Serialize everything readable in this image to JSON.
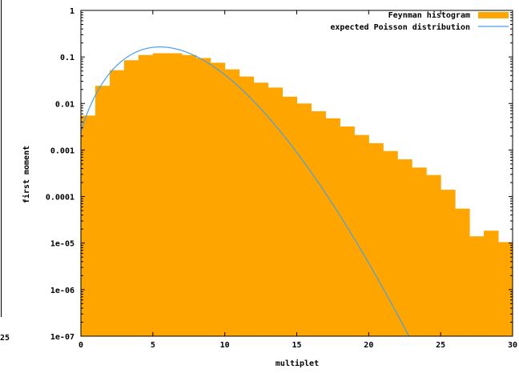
{
  "colors": {
    "histogram": "#ffa500",
    "poisson": "#4a9ee8",
    "axis": "#000000"
  },
  "chart_data": {
    "type": "bar",
    "xlabel": "multiplet",
    "ylabel": "first moment",
    "xlim": [
      0,
      30
    ],
    "ylim": [
      1e-07,
      1
    ],
    "y_scale": "log",
    "x_ticks": [
      "0",
      "5",
      "10",
      "15",
      "20",
      "25",
      "30"
    ],
    "x_tick_values": [
      0,
      5,
      10,
      15,
      20,
      25,
      30
    ],
    "y_ticks": [
      "1e-07",
      "1e-06",
      "1e-05",
      "0.0001",
      "0.001",
      "0.01",
      "0.1",
      "1"
    ],
    "y_tick_values": [
      1e-07,
      1e-06,
      1e-05,
      0.0001,
      0.001,
      0.01,
      0.1,
      1
    ],
    "left_partial_tick": "25",
    "legend_position": "top-right",
    "series": [
      {
        "name": "Feynman histogram",
        "kind": "histogram",
        "bin_width": 1,
        "x": [
          0,
          1,
          2,
          3,
          4,
          5,
          6,
          7,
          8,
          9,
          10,
          11,
          12,
          13,
          14,
          15,
          16,
          17,
          18,
          19,
          20,
          21,
          22,
          23,
          24,
          25,
          26,
          27,
          28,
          29
        ],
        "values": [
          0.0055,
          0.024,
          0.052,
          0.085,
          0.11,
          0.12,
          0.12,
          0.11,
          0.095,
          0.075,
          0.054,
          0.038,
          0.028,
          0.022,
          0.014,
          0.01,
          0.0068,
          0.0048,
          0.0032,
          0.0021,
          0.0014,
          0.00095,
          0.00063,
          0.00042,
          0.00029,
          0.00014,
          5.5e-05,
          1.4e-05,
          1.85e-05,
          1.05e-05
        ]
      },
      {
        "name": "expected Poisson distribution",
        "kind": "line",
        "lambda": 6.0
      }
    ]
  }
}
